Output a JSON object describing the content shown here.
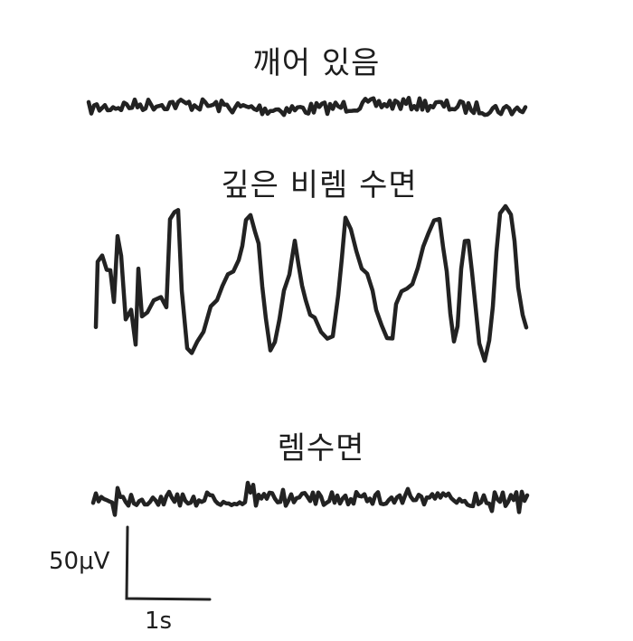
{
  "traces": [
    {
      "label": "깨어 있음",
      "amplitude": "low",
      "frequency": "high"
    },
    {
      "label": "깊은 비렘 수면",
      "amplitude": "high",
      "frequency": "low"
    },
    {
      "label": "렘수면",
      "amplitude": "low",
      "frequency": "high"
    }
  ],
  "scale_bar": {
    "vertical_label": "50μV",
    "horizontal_label": "1s"
  },
  "colors": {
    "ink": "#222222",
    "background": "#ffffff"
  }
}
